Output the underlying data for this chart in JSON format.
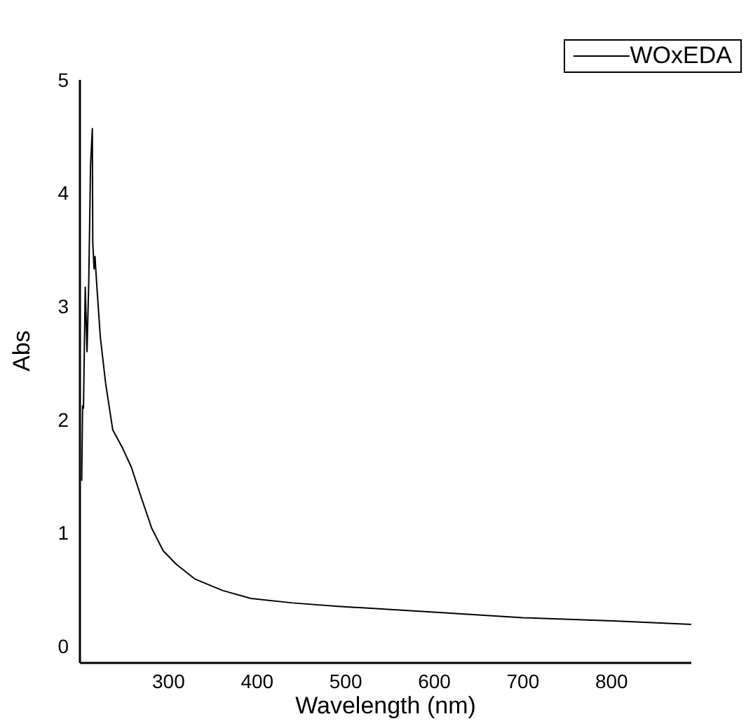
{
  "chart_data": {
    "type": "line",
    "xlabel": "Wavelength (nm)",
    "ylabel": "Abs",
    "xlim": [
      200,
      890
    ],
    "xticks": [
      300,
      400,
      500,
      600,
      700,
      800
    ],
    "ylim": [
      -0.15,
      5
    ],
    "yticks": [
      0,
      1,
      2,
      3,
      4,
      5
    ],
    "grid": false,
    "legend": "top right",
    "marker": "none",
    "line_style": "solid",
    "series": [
      {
        "name": "WOxEDA",
        "color": "#000000",
        "x": [
          202,
          203,
          204,
          206,
          208,
          210,
          212,
          214,
          214.5,
          216,
          217,
          219,
          223,
          229,
          237,
          248,
          258,
          268,
          281,
          294,
          309,
          330,
          361,
          393,
          440,
          491,
          596,
          700,
          806,
          890
        ],
        "values": [
          1.46,
          2.12,
          2.1,
          3.17,
          2.6,
          3.23,
          4.25,
          4.57,
          3.56,
          3.33,
          3.44,
          3.19,
          2.73,
          2.32,
          1.91,
          1.75,
          1.58,
          1.34,
          1.04,
          0.84,
          0.72,
          0.59,
          0.49,
          0.42,
          0.38,
          0.35,
          0.3,
          0.25,
          0.22,
          0.19
        ]
      }
    ]
  }
}
